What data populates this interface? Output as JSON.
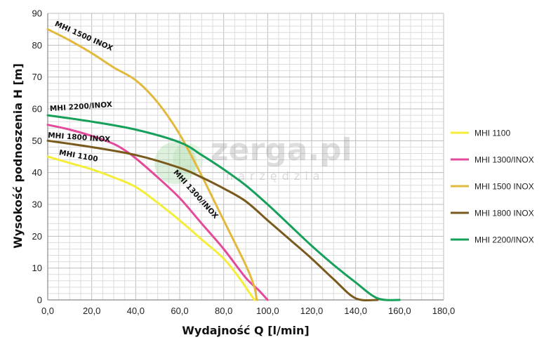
{
  "chart_data": {
    "type": "line",
    "xlabel": "Wydajność Q [l/min]",
    "ylabel": "Wysokość podnoszenia H [m]",
    "xlim": [
      0,
      180
    ],
    "ylim": [
      0,
      90
    ],
    "x_ticks": [
      "0,0",
      "20,0",
      "40,0",
      "60,0",
      "80,0",
      "100,0",
      "120,0",
      "140,0",
      "160,0",
      "180,0"
    ],
    "y_ticks": [
      "0",
      "10",
      "20",
      "30",
      "40",
      "50",
      "60",
      "70",
      "80",
      "90"
    ],
    "grid": true,
    "legend_position": "right",
    "watermark": {
      "main": "zerga.pl",
      "sub": "narzędzia"
    },
    "series": [
      {
        "name": "MHI 1100",
        "curve_label": "MHI 1100",
        "color": "#f4ee3a",
        "points": [
          [
            0,
            45
          ],
          [
            10,
            43
          ],
          [
            20,
            41
          ],
          [
            30,
            38.5
          ],
          [
            40,
            35.5
          ],
          [
            50,
            30.5
          ],
          [
            60,
            25
          ],
          [
            70,
            19
          ],
          [
            80,
            13
          ],
          [
            87,
            7
          ],
          [
            91,
            3
          ],
          [
            94,
            0
          ]
        ]
      },
      {
        "name": "MHI 1300/INOX",
        "curve_label": "MHI 1300/INOX",
        "color": "#e34a9a",
        "points": [
          [
            0,
            55
          ],
          [
            10,
            53.5
          ],
          [
            20,
            51.5
          ],
          [
            30,
            49
          ],
          [
            35,
            47
          ],
          [
            40,
            44.5
          ],
          [
            50,
            38.5
          ],
          [
            60,
            32
          ],
          [
            70,
            24
          ],
          [
            80,
            16
          ],
          [
            90,
            7
          ],
          [
            96,
            3
          ],
          [
            100,
            0
          ]
        ]
      },
      {
        "name": "MHI 1500 INOX",
        "curve_label": "MHI 1500 INOX",
        "color": "#e2b93c",
        "points": [
          [
            0,
            85
          ],
          [
            10,
            81.5
          ],
          [
            20,
            77.5
          ],
          [
            30,
            73
          ],
          [
            40,
            69
          ],
          [
            50,
            62
          ],
          [
            60,
            52
          ],
          [
            70,
            39
          ],
          [
            80,
            25
          ],
          [
            90,
            11
          ],
          [
            94,
            4
          ],
          [
            95,
            0
          ]
        ]
      },
      {
        "name": "MHI 1800 INOX",
        "curve_label": "MHI 1800 INOX",
        "color": "#7a5a1c",
        "points": [
          [
            0,
            50
          ],
          [
            20,
            48
          ],
          [
            40,
            45.5
          ],
          [
            60,
            41.5
          ],
          [
            70,
            38.5
          ],
          [
            80,
            35
          ],
          [
            90,
            31
          ],
          [
            100,
            25
          ],
          [
            110,
            19
          ],
          [
            120,
            13
          ],
          [
            130,
            6.5
          ],
          [
            140,
            0.5
          ],
          [
            150,
            -1
          ]
        ]
      },
      {
        "name": "MHI 2200/INOX",
        "curve_label": "MHI 2200/INOX",
        "color": "#16a05a",
        "points": [
          [
            0,
            58
          ],
          [
            20,
            56
          ],
          [
            40,
            53.5
          ],
          [
            60,
            49.5
          ],
          [
            70,
            45.5
          ],
          [
            80,
            41
          ],
          [
            90,
            36
          ],
          [
            100,
            30
          ],
          [
            110,
            23.5
          ],
          [
            120,
            17
          ],
          [
            130,
            11
          ],
          [
            140,
            5.5
          ],
          [
            150,
            0.5
          ],
          [
            160,
            0
          ]
        ]
      }
    ]
  }
}
